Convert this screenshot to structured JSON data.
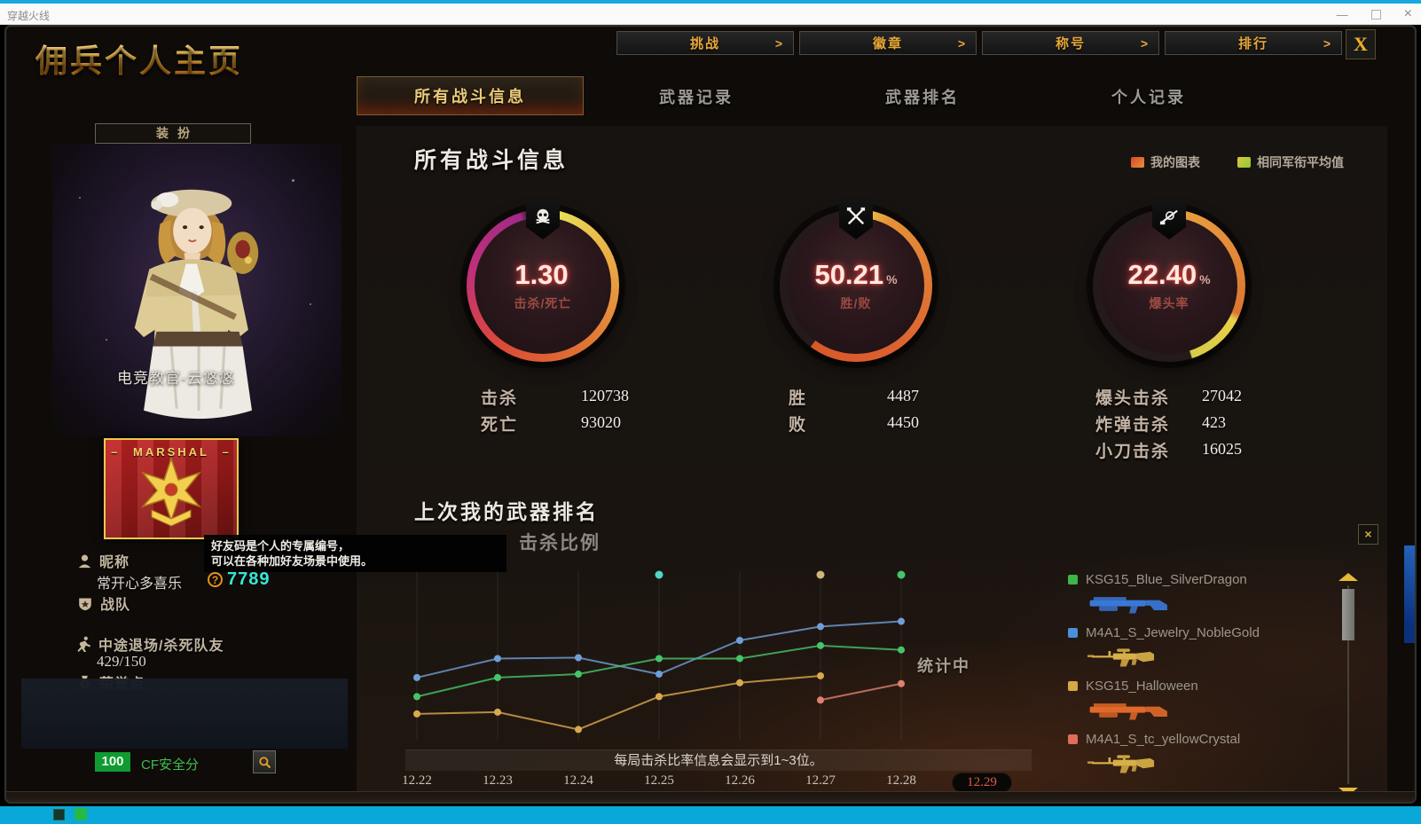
{
  "window": {
    "title": "穿越火线",
    "minimize": "—",
    "close": "×"
  },
  "header": {
    "page_title": "佣兵个人主页",
    "nav_arrow": ">",
    "close_label": "X",
    "nav_buttons": [
      {
        "label": "挑战"
      },
      {
        "label": "徽章"
      },
      {
        "label": "称号"
      },
      {
        "label": "排行"
      }
    ],
    "tabs": [
      {
        "label": "所有战斗信息",
        "active": true
      },
      {
        "label": "武器记录",
        "active": false
      },
      {
        "label": "武器排名",
        "active": false
      },
      {
        "label": "个人记录",
        "active": false
      }
    ]
  },
  "left_panel": {
    "dress_button": "装扮",
    "character_name": "电竞教官-云悠悠",
    "rank_badge": {
      "title": "MARSHAL",
      "dash": "—"
    },
    "nickname_label": "昵称",
    "nickname_value": "常开心多喜乐",
    "friend_code_icon": "?",
    "friend_code": "7789",
    "clan_label": "战队",
    "quit_label": "中途退场/杀死队友",
    "quit_value": "429/150",
    "honor_label": "荣誉点",
    "security_score": "100",
    "security_label": "CF安全分"
  },
  "tooltip": {
    "line1": "好友码是个人的专属编号，",
    "line2": "可以在各种加好友场景中使用。"
  },
  "main": {
    "section_title": "所有战斗信息",
    "legend": [
      {
        "label": "我的图表",
        "color": "#d44a2a",
        "color2": "#e89038"
      },
      {
        "label": "相同军衔平均值",
        "color": "#ddc83a",
        "color2": "#8cc838"
      }
    ],
    "gauges": [
      {
        "value": "1.30",
        "unit": "",
        "label": "击杀/死亡",
        "icon": "skull"
      },
      {
        "value": "50.21",
        "unit": "%",
        "label": "胜/败",
        "icon": "crossed-rifles"
      },
      {
        "value": "22.40",
        "unit": "%",
        "label": "爆头率",
        "icon": "sniper-rifle"
      }
    ],
    "stat_groups": [
      {
        "rows": [
          {
            "label": "击杀",
            "value": "120738"
          },
          {
            "label": "死亡",
            "value": "93020"
          }
        ]
      },
      {
        "rows": [
          {
            "label": "胜",
            "value": "4487"
          },
          {
            "label": "败",
            "value": "4450"
          }
        ]
      },
      {
        "rows": [
          {
            "label": "爆头击杀",
            "value": "27042"
          },
          {
            "label": "炸弹击杀",
            "value": "423"
          },
          {
            "label": "小刀击杀",
            "value": "16025"
          }
        ]
      }
    ],
    "chart_section": {
      "title": "上次我的武器排名",
      "subtitle": "击杀比例",
      "status": "统计中",
      "note": "每局击杀比率信息会显示到1~3位。",
      "close_label": "×"
    },
    "weapons": [
      {
        "name": "KSG15_Blue_SilverDragon",
        "swatch_color": "#3db54a",
        "gun_color": "#3a78d8",
        "gun_type": "ksg"
      },
      {
        "name": "M4A1_S_Jewelry_NobleGold",
        "swatch_color": "#4a90d9",
        "gun_color": "#d8b048",
        "gun_type": "m4"
      },
      {
        "name": "KSG15_Halloween",
        "swatch_color": "#d4a843",
        "gun_color": "#e06828",
        "gun_type": "ksg"
      },
      {
        "name": "M4A1_S_tc_yellowCrystal",
        "swatch_color": "#e06c5a",
        "gun_color": "#d8b048",
        "gun_type": "m4"
      }
    ]
  },
  "chart_data": {
    "type": "line",
    "title": "击杀比例",
    "x": [
      "12.22",
      "12.23",
      "12.24",
      "12.25",
      "12.26",
      "12.27",
      "12.28",
      "12.29"
    ],
    "active_x": "12.29",
    "ylim": [
      0,
      100
    ],
    "grid": "vertical",
    "legend_position": "right-list",
    "series": [
      {
        "name": "M4A1_S_Jewelry_NobleGold",
        "color": "#6f9fd8",
        "values": [
          38.5,
          49.5,
          50,
          40.5,
          60,
          68,
          71,
          null
        ]
      },
      {
        "name": "KSG15_Blue_SilverDragon",
        "color": "#46c46a",
        "values": [
          27.5,
          38.5,
          40.5,
          49.5,
          49.5,
          57,
          54.5,
          null
        ]
      },
      {
        "name": "KSG15_Halloween",
        "color": "#d9a94f",
        "values": [
          17.5,
          18.5,
          8.5,
          27.5,
          35.5,
          39.5,
          null,
          null
        ]
      },
      {
        "name": "M4A1_S_tc_yellowCrystal",
        "color": "#e08070",
        "values": [
          null,
          null,
          null,
          null,
          null,
          25.5,
          35,
          null
        ]
      }
    ],
    "top_markers": [
      {
        "x": "12.25",
        "color": "#52d6c3"
      },
      {
        "x": "12.27",
        "color": "#cbb87a"
      },
      {
        "x": "12.28",
        "color": "#46c46a"
      }
    ],
    "status_label": "统计中",
    "note": "每局击杀比率信息会显示到1~3位。"
  }
}
